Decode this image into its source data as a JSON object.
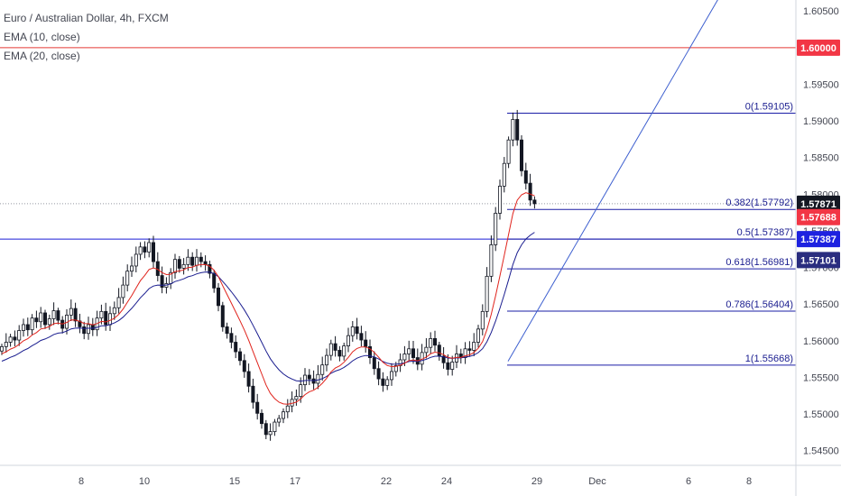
{
  "chart_data": {
    "type": "candlestick",
    "title": "Euro / Australian Dollar, 4h, FXCM",
    "indicators": [
      {
        "name": "EMA (10, close)",
        "color": "#e0231c"
      },
      {
        "name": "EMA (20, close)",
        "color": "#1a1d8f"
      }
    ],
    "ylim": [
      1.543,
      1.6065
    ],
    "y_ticks": [
      "1.60500",
      "1.60000",
      "1.59500",
      "1.59000",
      "1.58500",
      "1.58000",
      "1.57500",
      "1.57000",
      "1.56500",
      "1.56000",
      "1.55500",
      "1.55000",
      "1.54500"
    ],
    "x_ticks": [
      {
        "label": "8",
        "t": 90
      },
      {
        "label": "10",
        "t": 160
      },
      {
        "label": "15",
        "t": 260
      },
      {
        "label": "17",
        "t": 327
      },
      {
        "label": "22",
        "t": 428
      },
      {
        "label": "24",
        "t": 495
      },
      {
        "label": "29",
        "t": 595
      },
      {
        "label": "Dec",
        "t": 662
      },
      {
        "label": "6",
        "t": 763
      },
      {
        "label": "8",
        "t": 830
      }
    ],
    "horizontal_lines": [
      {
        "price": 1.6,
        "color": "#e53935"
      },
      {
        "price": 1.57387,
        "color": "#1a1dd8"
      }
    ],
    "price_labels": [
      {
        "text": "1.60000",
        "price": 1.6,
        "bg": "#f23645",
        "fg": "#ffffff"
      },
      {
        "text": "1.57871",
        "price": 1.57871,
        "bg": "#131722",
        "fg": "#ffffff"
      },
      {
        "text": "1.57688",
        "price": 1.57688,
        "bg": "#f23645",
        "fg": "#ffffff"
      },
      {
        "text": "1.57387",
        "price": 1.57387,
        "bg": "#1e22e0",
        "fg": "#ffffff"
      },
      {
        "text": "1.57101",
        "price": 1.57101,
        "bg": "#2a2d7f",
        "fg": "#ffffff"
      }
    ],
    "last_price": 1.57871,
    "fibonacci": {
      "t_start": 562,
      "t_end": 882,
      "color": "#1a1da6",
      "levels": [
        {
          "label": "0(1.59105)",
          "price": 1.59105
        },
        {
          "label": "0.382(1.57792)",
          "price": 1.57792
        },
        {
          "label": "0.5(1.57387)",
          "price": 1.57387
        },
        {
          "label": "0.618(1.56981)",
          "price": 1.56981
        },
        {
          "label": "0.786(1.56404)",
          "price": 1.56404
        },
        {
          "label": "1(1.55668)",
          "price": 1.55668
        }
      ]
    },
    "trendline": {
      "t1": 563,
      "p1": 1.5572,
      "t2": 800,
      "p2": 1.6075,
      "color": "#3d5fcf"
    },
    "candle_step": 4.8,
    "candle_t0": 2,
    "close_series": [
      1.5592,
      1.5598,
      1.5605,
      1.5601,
      1.5614,
      1.5622,
      1.5615,
      1.5631,
      1.5626,
      1.5638,
      1.5622,
      1.563,
      1.5641,
      1.5628,
      1.5617,
      1.5635,
      1.5644,
      1.5627,
      1.5619,
      1.561,
      1.5622,
      1.5615,
      1.5631,
      1.564,
      1.5622,
      1.5637,
      1.5645,
      1.5659,
      1.5676,
      1.5695,
      1.5702,
      1.5718,
      1.5728,
      1.5721,
      1.5734,
      1.5708,
      1.5689,
      1.5673,
      1.5678,
      1.5693,
      1.5711,
      1.5699,
      1.5704,
      1.5714,
      1.5703,
      1.5714,
      1.5708,
      1.5704,
      1.5692,
      1.5672,
      1.5648,
      1.5619,
      1.561,
      1.5598,
      1.5585,
      1.5573,
      1.5558,
      1.5538,
      1.5516,
      1.5501,
      1.5487,
      1.5472,
      1.5476,
      1.5489,
      1.5494,
      1.5503,
      1.5511,
      1.552,
      1.5524,
      1.554,
      1.5553,
      1.5548,
      1.5542,
      1.5554,
      1.5567,
      1.558,
      1.5596,
      1.5587,
      1.5579,
      1.5593,
      1.5607,
      1.5619,
      1.561,
      1.5601,
      1.5592,
      1.5577,
      1.5562,
      1.5548,
      1.5539,
      1.5547,
      1.5558,
      1.5566,
      1.5574,
      1.5582,
      1.5589,
      1.5577,
      1.5568,
      1.5584,
      1.5591,
      1.5603,
      1.5594,
      1.5579,
      1.557,
      1.5561,
      1.5571,
      1.5582,
      1.5577,
      1.5589,
      1.5587,
      1.5598,
      1.5616,
      1.564,
      1.5688,
      1.5731,
      1.5774,
      1.5811,
      1.5842,
      1.5874,
      1.5902,
      1.5874,
      1.5832,
      1.5815,
      1.5792,
      1.5787
    ]
  }
}
